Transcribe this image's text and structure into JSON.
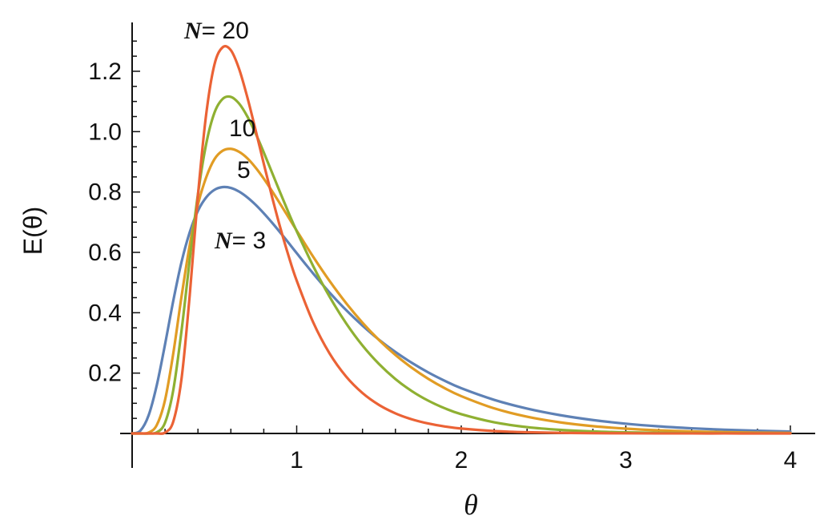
{
  "chart_data": {
    "type": "line",
    "xlabel": "θ",
    "ylabel": "E(θ)",
    "xlim": [
      0,
      4.1
    ],
    "ylim": [
      0,
      1.33
    ],
    "x_ticks": [
      1,
      2,
      3,
      4
    ],
    "y_ticks": [
      0.2,
      0.4,
      0.6,
      0.8,
      1.0,
      1.2
    ],
    "x_tick_labels": [
      "1",
      "2",
      "3",
      "4"
    ],
    "y_tick_labels": [
      "0.2",
      "0.4",
      "0.6",
      "0.8",
      "1.0",
      "1.2"
    ],
    "grid": false,
    "series": [
      {
        "N": 3,
        "color": "#5E81B5",
        "x": [
          0.0,
          0.05,
          0.1,
          0.15,
          0.2,
          0.25,
          0.3,
          0.35,
          0.4,
          0.45,
          0.5,
          0.55,
          0.6,
          0.65,
          0.7,
          0.75,
          0.8,
          0.85,
          0.9,
          0.95,
          1.0,
          1.1,
          1.2,
          1.3,
          1.4,
          1.5,
          1.6,
          1.7,
          1.8,
          1.9,
          2.0,
          2.2,
          2.4,
          2.6,
          2.8,
          3.0,
          3.2,
          3.4,
          3.6,
          3.8,
          4.0
        ],
        "values": [
          0.0,
          0.0091,
          0.0598,
          0.1603,
          0.2953,
          0.4394,
          0.5677,
          0.6666,
          0.7378,
          0.7822,
          0.8072,
          0.8163,
          0.8135,
          0.8013,
          0.7822,
          0.7579,
          0.7296,
          0.6986,
          0.6658,
          0.632,
          0.5975,
          0.5301,
          0.4668,
          0.409,
          0.3573,
          0.3107,
          0.2698,
          0.2339,
          0.2021,
          0.1744,
          0.1499,
          0.1114,
          0.0824,
          0.0607,
          0.0445,
          0.0324,
          0.0235,
          0.0171,
          0.0123,
          0.0089,
          0.0064
        ]
      },
      {
        "N": 5,
        "color": "#E19C24",
        "x": [
          0.0,
          0.05,
          0.1,
          0.15,
          0.2,
          0.25,
          0.3,
          0.35,
          0.4,
          0.45,
          0.5,
          0.55,
          0.6,
          0.65,
          0.7,
          0.75,
          0.8,
          0.85,
          0.9,
          0.95,
          1.0,
          1.1,
          1.2,
          1.3,
          1.4,
          1.5,
          1.6,
          1.7,
          1.8,
          1.9,
          2.0,
          2.2,
          2.4,
          2.6,
          2.8,
          3.0,
          3.2,
          3.4,
          3.6,
          3.8,
          4.0
        ],
        "values": [
          0.0,
          0.0,
          0.0028,
          0.0281,
          0.1108,
          0.2651,
          0.4532,
          0.6242,
          0.7585,
          0.8485,
          0.9086,
          0.9368,
          0.943,
          0.933,
          0.9118,
          0.881,
          0.8442,
          0.8033,
          0.7604,
          0.7164,
          0.6721,
          0.5857,
          0.5052,
          0.4321,
          0.3669,
          0.3098,
          0.2601,
          0.2175,
          0.1809,
          0.1498,
          0.1236,
          0.0832,
          0.0555,
          0.0368,
          0.0242,
          0.0159,
          0.0103,
          0.0067,
          0.0043,
          0.0028,
          0.0018
        ]
      },
      {
        "N": 10,
        "color": "#8FB032",
        "x": [
          0.0,
          0.05,
          0.1,
          0.15,
          0.2,
          0.25,
          0.3,
          0.35,
          0.4,
          0.45,
          0.5,
          0.55,
          0.6,
          0.65,
          0.7,
          0.75,
          0.8,
          0.85,
          0.9,
          0.95,
          1.0,
          1.1,
          1.2,
          1.3,
          1.4,
          1.5,
          1.6,
          1.7,
          1.8,
          1.9,
          2.0,
          2.2,
          2.4,
          2.6,
          2.8,
          3.0,
          3.2,
          3.4,
          3.6,
          3.8,
          4.0
        ],
        "values": [
          0.0,
          0.0,
          0.0,
          0.0036,
          0.0356,
          0.1437,
          0.3397,
          0.5749,
          0.7932,
          0.9593,
          1.0624,
          1.1084,
          1.1152,
          1.093,
          1.0504,
          0.9946,
          0.9311,
          0.8646,
          0.7977,
          0.7324,
          0.6701,
          0.5549,
          0.453,
          0.3653,
          0.2912,
          0.2302,
          0.1803,
          0.1403,
          0.1085,
          0.0834,
          0.0638,
          0.0369,
          0.0211,
          0.0119,
          0.0067,
          0.0037,
          0.002,
          0.0011,
          0.0006,
          0.0003,
          0.0002
        ]
      },
      {
        "N": 20,
        "color": "#EB6235",
        "x": [
          0.0,
          0.05,
          0.1,
          0.15,
          0.2,
          0.25,
          0.3,
          0.35,
          0.4,
          0.45,
          0.5,
          0.55,
          0.6,
          0.65,
          0.7,
          0.75,
          0.8,
          0.85,
          0.9,
          0.95,
          1.0,
          1.1,
          1.2,
          1.3,
          1.4,
          1.5,
          1.6,
          1.7,
          1.8,
          1.9,
          2.0,
          2.2,
          2.4,
          2.6,
          2.8,
          3.0,
          3.2,
          3.4,
          3.6,
          3.8,
          4.0
        ],
        "values": [
          0.0,
          0.0,
          0.0,
          0.0,
          0.0029,
          0.0393,
          0.1806,
          0.4583,
          0.7891,
          1.0573,
          1.2218,
          1.2794,
          1.2697,
          1.2079,
          1.1141,
          1.0058,
          0.8938,
          0.7846,
          0.6824,
          0.5895,
          0.5064,
          0.3686,
          0.2649,
          0.1888,
          0.1339,
          0.0946,
          0.0666,
          0.0468,
          0.0329,
          0.0231,
          0.0162,
          0.008,
          0.0039,
          0.0019,
          0.0009,
          0.0005,
          0.0002,
          0.0001,
          0.0001,
          0.0,
          0.0
        ]
      }
    ],
    "annotations": [
      {
        "italic": "N",
        "text": "= 20"
      },
      {
        "italic": "",
        "text": "10"
      },
      {
        "italic": "",
        "text": "5"
      },
      {
        "italic": "N",
        "text": "= 3"
      }
    ]
  }
}
